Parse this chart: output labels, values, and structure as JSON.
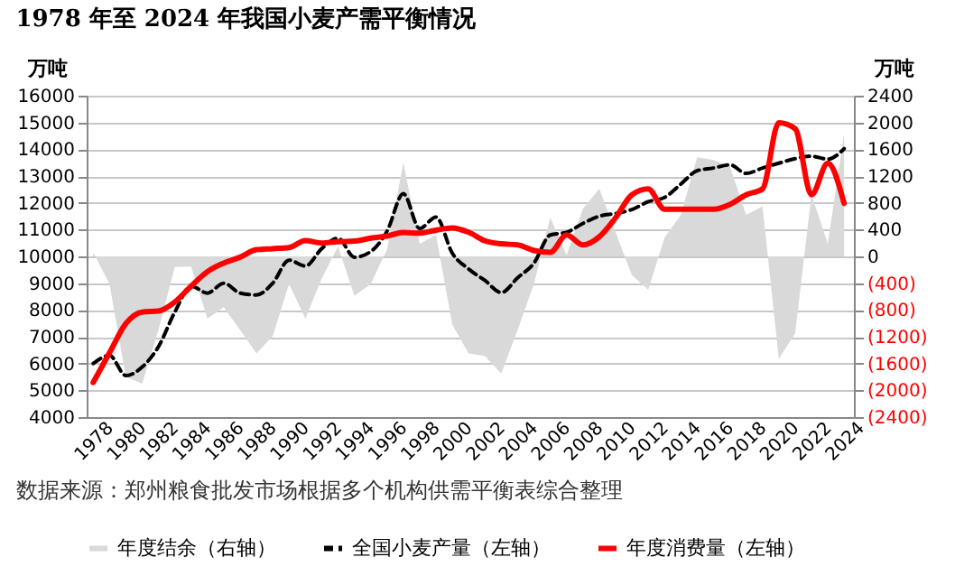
{
  "chart_data": {
    "type": "line",
    "title": "1978 年至 2024 年我国小麦产需平衡情况",
    "ylabel": "万吨",
    "y2label": "万吨",
    "x": [
      1978,
      1979,
      1980,
      1981,
      1982,
      1983,
      1984,
      1985,
      1986,
      1987,
      1988,
      1989,
      1990,
      1991,
      1992,
      1993,
      1994,
      1995,
      1996,
      1997,
      1998,
      1999,
      2000,
      2001,
      2002,
      2003,
      2004,
      2005,
      2006,
      2007,
      2008,
      2009,
      2010,
      2011,
      2012,
      2013,
      2014,
      2015,
      2016,
      2017,
      2018,
      2019,
      2020,
      2021,
      2022,
      2023,
      2024
    ],
    "xlim": [
      1977.6,
      2024.6
    ],
    "xticks": [
      1978,
      1980,
      1982,
      1984,
      1986,
      1988,
      1990,
      1992,
      1994,
      1996,
      1998,
      2000,
      2002,
      2004,
      2006,
      2008,
      2010,
      2012,
      2014,
      2016,
      2018,
      2020,
      2022,
      2024
    ],
    "ylim": [
      4000,
      16000
    ],
    "yticks": [
      4000,
      5000,
      6000,
      7000,
      8000,
      9000,
      10000,
      11000,
      12000,
      13000,
      14000,
      15000,
      16000
    ],
    "y2lim": [
      -2400,
      2400
    ],
    "y2ticks": [
      {
        "value": -2400,
        "label": "(2400)"
      },
      {
        "value": -2000,
        "label": "(2000)"
      },
      {
        "value": -1600,
        "label": "(1600)"
      },
      {
        "value": -1200,
        "label": "(1200)"
      },
      {
        "value": -800,
        "label": "(800)"
      },
      {
        "value": -400,
        "label": "(400)"
      },
      0,
      400,
      800,
      1200,
      1600,
      2000,
      2400
    ],
    "grid": "y",
    "legend": "bottom",
    "series": [
      {
        "name": "年度结余（右轴）",
        "type": "area",
        "axis": "y2",
        "color": "#d9d9d9",
        "values": [
          60,
          -410,
          -1800,
          -1900,
          -1100,
          -160,
          -150,
          -930,
          -760,
          -1100,
          -1450,
          -1190,
          -410,
          -930,
          -330,
          150,
          -590,
          -410,
          100,
          1400,
          190,
          320,
          -1020,
          -1450,
          -1490,
          -1750,
          -1100,
          -410,
          580,
          20,
          710,
          1010,
          360,
          -280,
          -500,
          280,
          620,
          1480,
          1440,
          1350,
          620,
          750,
          -1530,
          -1150,
          920,
          190,
          1830
        ]
      },
      {
        "name": "全国小麦产量（左轴）",
        "axis": "y",
        "line_style": "dashed",
        "color": "#000000",
        "values": [
          6000,
          6300,
          5550,
          5870,
          6630,
          7920,
          8890,
          8630,
          9000,
          8630,
          8560,
          9000,
          9860,
          9640,
          10290,
          10680,
          9970,
          10180,
          10940,
          12340,
          11040,
          11470,
          10120,
          9530,
          9100,
          8650,
          9200,
          9750,
          10800,
          10900,
          11230,
          11500,
          11600,
          11750,
          12040,
          12200,
          12700,
          13200,
          13300,
          13420,
          13100,
          13300,
          13480,
          13650,
          13740,
          13630,
          14020
        ]
      },
      {
        "name": "年度消费量（左轴）",
        "axis": "y",
        "line_style": "solid",
        "color": "#ff0000",
        "values": [
          5290,
          6400,
          7490,
          7920,
          7960,
          8300,
          8890,
          9430,
          9750,
          9970,
          10250,
          10290,
          10330,
          10590,
          10500,
          10550,
          10570,
          10680,
          10760,
          10890,
          10870,
          10980,
          11060,
          10900,
          10580,
          10470,
          10430,
          10220,
          10150,
          10800,
          10430,
          10730,
          11440,
          12300,
          12520,
          11760,
          11760,
          11760,
          11760,
          11940,
          12300,
          12520,
          14990,
          14770,
          12300,
          13480,
          11980
        ]
      }
    ],
    "annotations": [
      "数据来源：郑州粮食批发市场根据多个机构供需平衡表综合整理"
    ]
  }
}
